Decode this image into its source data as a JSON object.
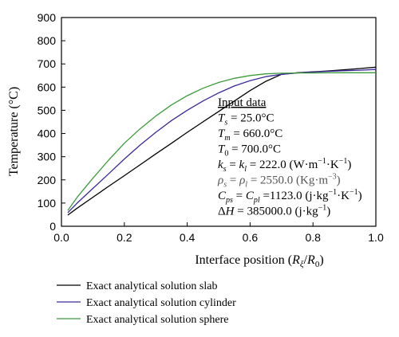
{
  "chart_data": {
    "type": "line",
    "xlabel_main": "Interface position (",
    "xlabel_var": "R",
    "xlabel_sub": "ξ",
    "xlabel_div": "/",
    "xlabel_var2": "R",
    "xlabel_sub2": "0",
    "xlabel_end": ")",
    "ylabel": "Temperature (°C)",
    "xlim": [
      0.0,
      1.0
    ],
    "ylim": [
      0,
      900
    ],
    "x_ticks": [
      "0.0",
      "0.2",
      "0.4",
      "0.6",
      "0.8",
      "1.0"
    ],
    "y_ticks": [
      "0",
      "100",
      "200",
      "300",
      "400",
      "500",
      "600",
      "700",
      "800",
      "900"
    ],
    "series": [
      {
        "name": "Exact analytical solution slab",
        "color": "#000000",
        "x": [
          0.02,
          0.05,
          0.1,
          0.15,
          0.2,
          0.25,
          0.3,
          0.35,
          0.4,
          0.45,
          0.5,
          0.55,
          0.6,
          0.65,
          0.7,
          0.75,
          0.8,
          0.85,
          0.9,
          0.95,
          1.0
        ],
        "y": [
          48,
          78,
          125,
          172,
          218,
          265,
          312,
          358,
          405,
          450,
          495,
          540,
          585,
          625,
          655,
          662,
          666,
          670,
          675,
          680,
          686
        ]
      },
      {
        "name": "Exact analytical solution cylinder",
        "color": "#3a2a9a",
        "x": [
          0.02,
          0.05,
          0.1,
          0.15,
          0.2,
          0.25,
          0.3,
          0.35,
          0.4,
          0.45,
          0.5,
          0.55,
          0.6,
          0.65,
          0.7,
          0.75,
          0.8,
          0.85,
          0.9,
          0.95,
          1.0
        ],
        "y": [
          58,
          100,
          163,
          226,
          290,
          350,
          405,
          456,
          500,
          540,
          575,
          605,
          628,
          645,
          655,
          661,
          665,
          668,
          671,
          673,
          676
        ]
      },
      {
        "name": "Exact analytical solution sphere",
        "color": "#3c9a3c",
        "x": [
          0.02,
          0.05,
          0.1,
          0.15,
          0.2,
          0.25,
          0.3,
          0.35,
          0.4,
          0.45,
          0.5,
          0.55,
          0.6,
          0.65,
          0.7,
          0.75,
          0.8,
          0.85,
          0.9,
          0.95,
          1.0
        ],
        "y": [
          68,
          125,
          207,
          285,
          358,
          420,
          475,
          523,
          563,
          595,
          620,
          638,
          650,
          657,
          660,
          661,
          661,
          662,
          662,
          662,
          662
        ]
      }
    ],
    "annotation": {
      "header": "Input data",
      "lines": [
        {
          "parts": [
            {
              "t": "T",
              "i": true
            },
            {
              "t": "s",
              "sub": true,
              "i": true
            },
            {
              "t": " = 25.0°C"
            }
          ]
        },
        {
          "parts": [
            {
              "t": "T",
              "i": true
            },
            {
              "t": "m",
              "sub": true,
              "i": true
            },
            {
              "t": " = 660.0°C"
            }
          ]
        },
        {
          "parts": [
            {
              "t": "T",
              "i": true
            },
            {
              "t": "0",
              "sub": true
            },
            {
              "t": " = 700.0°C"
            }
          ]
        },
        {
          "parts": [
            {
              "t": "k",
              "i": true
            },
            {
              "t": "s",
              "sub": true,
              "i": true
            },
            {
              "t": " = "
            },
            {
              "t": "k",
              "i": true
            },
            {
              "t": "l",
              "sub": true,
              "i": true
            },
            {
              "t": " = 222.0 (W·m"
            },
            {
              "t": "−1",
              "sup": true
            },
            {
              "t": "·K"
            },
            {
              "t": "−1",
              "sup": true
            },
            {
              "t": ")"
            }
          ]
        },
        {
          "gray": true,
          "parts": [
            {
              "t": "ρ",
              "i": true
            },
            {
              "t": "s",
              "sub": true,
              "i": true
            },
            {
              "t": " = "
            },
            {
              "t": "ρ",
              "i": true
            },
            {
              "t": "l",
              "sub": true,
              "i": true
            },
            {
              "t": " = 2550.0 (Kg·m"
            },
            {
              "t": "−3",
              "sup": true
            },
            {
              "t": ")"
            }
          ]
        },
        {
          "parts": [
            {
              "t": "C",
              "i": true
            },
            {
              "t": "ps",
              "sub": true,
              "i": true
            },
            {
              "t": " = "
            },
            {
              "t": "C",
              "i": true
            },
            {
              "t": "pl",
              "sub": true,
              "i": true
            },
            {
              "t": " =1123.0 (j·kg"
            },
            {
              "t": "−1",
              "sup": true
            },
            {
              "t": "·K"
            },
            {
              "t": "−1",
              "sup": true
            },
            {
              "t": ")"
            }
          ]
        },
        {
          "parts": [
            {
              "t": "Δ"
            },
            {
              "t": "H",
              "i": true
            },
            {
              "t": " = 385000.0 (j·kg"
            },
            {
              "t": "−1",
              "sup": true
            },
            {
              "t": ")"
            }
          ]
        }
      ]
    },
    "legend_placement": "bottom-left, below plot"
  }
}
